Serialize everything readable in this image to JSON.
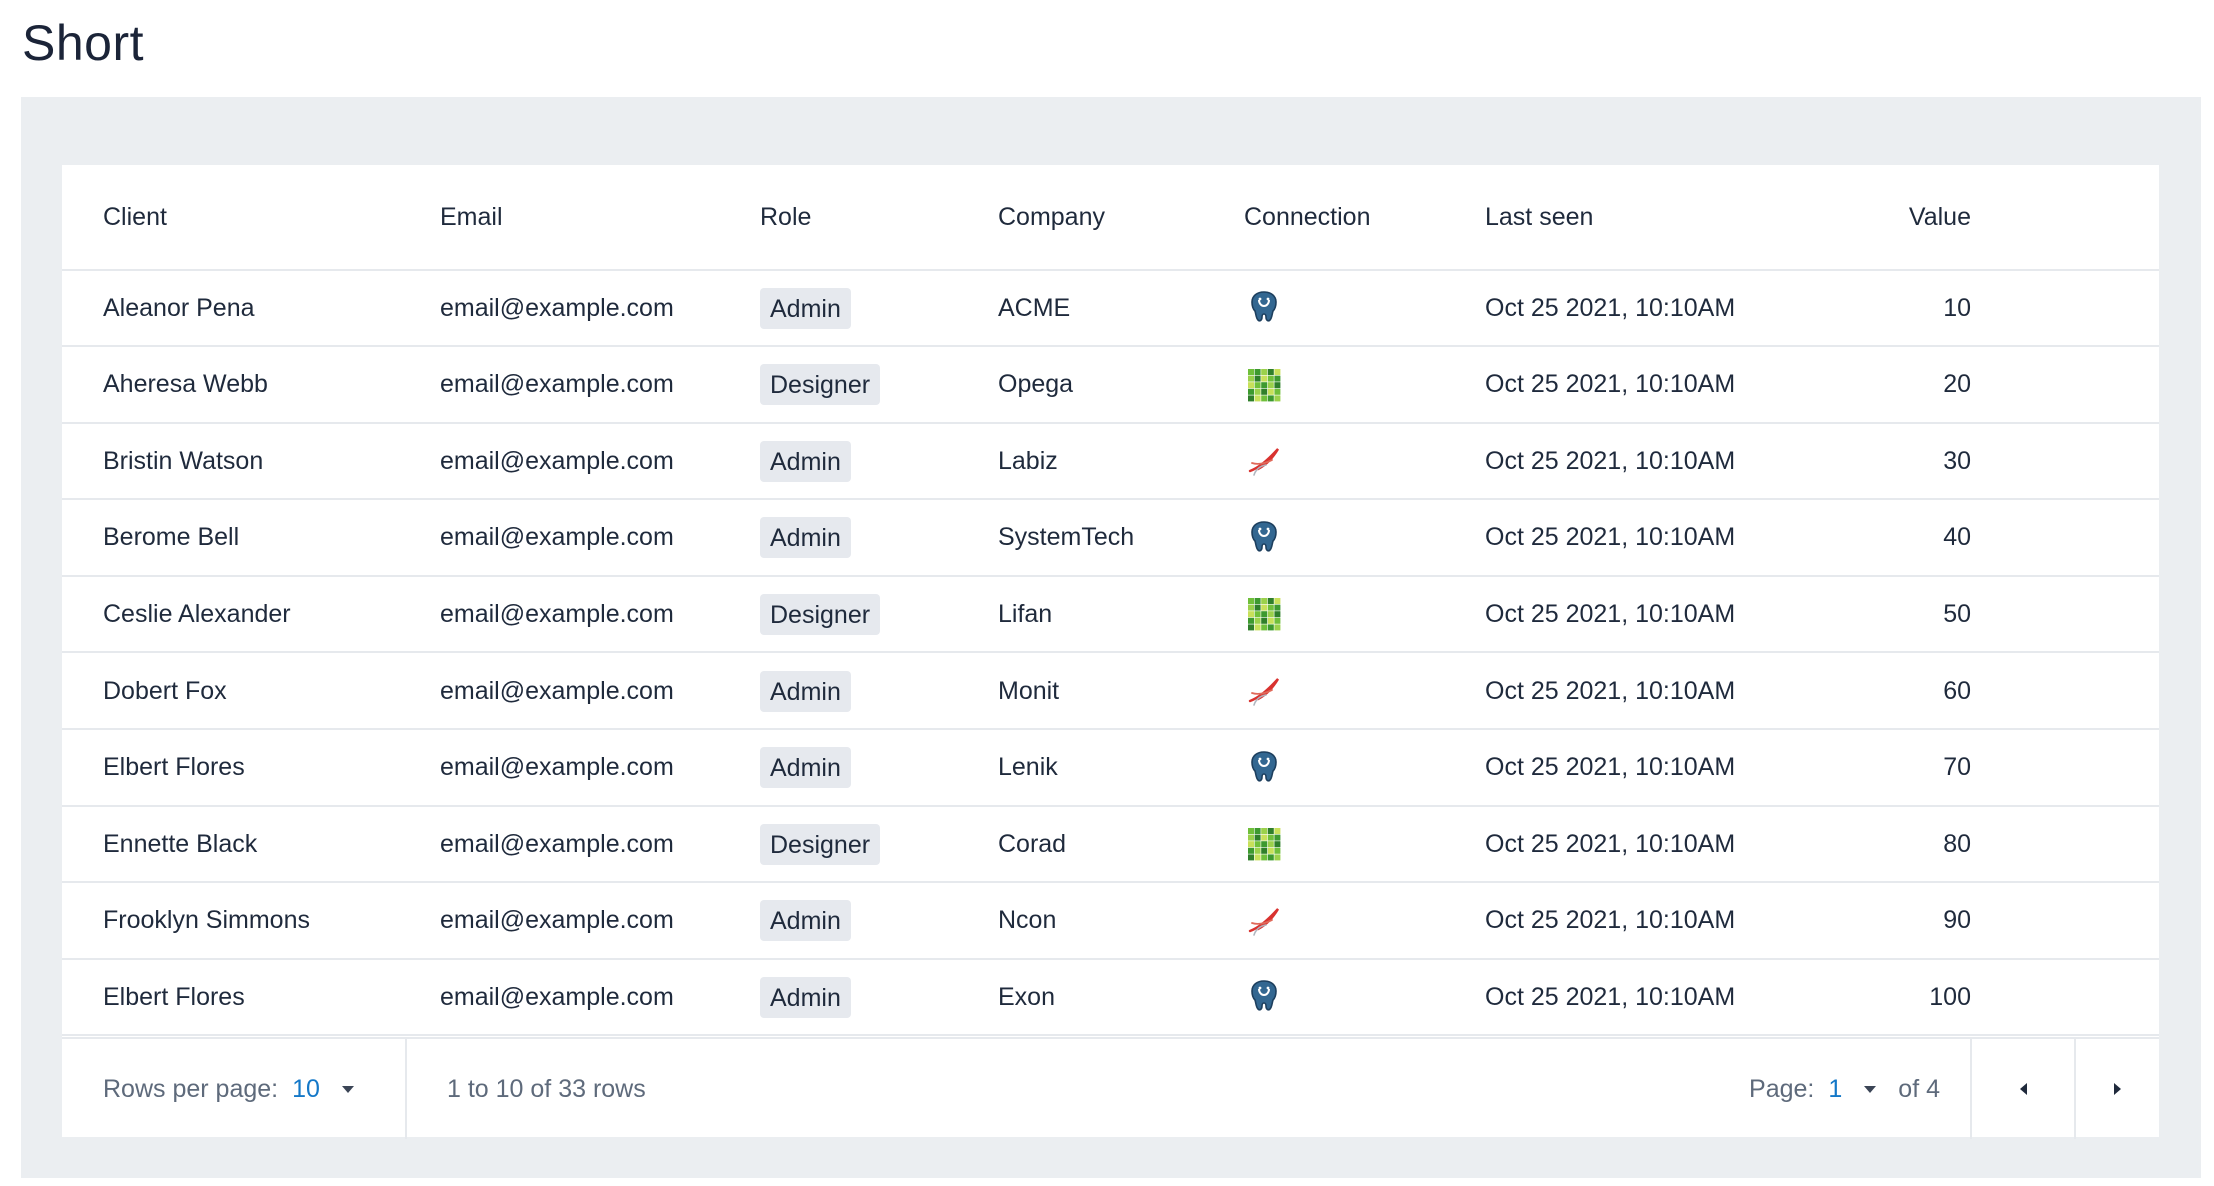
{
  "page": {
    "title": "Short"
  },
  "table": {
    "columns": {
      "client": "Client",
      "email": "Email",
      "role": "Role",
      "company": "Company",
      "connection": "Connection",
      "last_seen": "Last seen",
      "value": "Value"
    },
    "rows": [
      {
        "client": "Aleanor Pena",
        "email": "email@example.com",
        "role": "Admin",
        "company": "ACME",
        "connection": "postgresql-icon",
        "last_seen": "Oct 25  2021, 10:10AM",
        "value": "10"
      },
      {
        "client": "Aheresa Webb",
        "email": "email@example.com",
        "role": "Designer",
        "company": "Opega",
        "connection": "greenplum-icon",
        "last_seen": "Oct 25  2021, 10:10AM",
        "value": "20"
      },
      {
        "client": "Bristin Watson",
        "email": "email@example.com",
        "role": "Admin",
        "company": "Labiz",
        "connection": "sqlserver-icon",
        "last_seen": "Oct 25  2021, 10:10AM",
        "value": "30"
      },
      {
        "client": "Berome Bell",
        "email": "email@example.com",
        "role": "Admin",
        "company": "SystemTech",
        "connection": "postgresql-icon",
        "last_seen": "Oct 25  2021, 10:10AM",
        "value": "40"
      },
      {
        "client": "Ceslie Alexander",
        "email": "email@example.com",
        "role": "Designer",
        "company": "Lifan",
        "connection": "greenplum-icon",
        "last_seen": "Oct 25  2021, 10:10AM",
        "value": "50"
      },
      {
        "client": "Dobert Fox",
        "email": "email@example.com",
        "role": "Admin",
        "company": "Monit",
        "connection": "sqlserver-icon",
        "last_seen": "Oct 25  2021, 10:10AM",
        "value": "60"
      },
      {
        "client": "Elbert Flores",
        "email": "email@example.com",
        "role": "Admin",
        "company": "Lenik",
        "connection": "postgresql-icon",
        "last_seen": "Oct 25  2021, 10:10AM",
        "value": "70"
      },
      {
        "client": "Ennette Black",
        "email": "email@example.com",
        "role": "Designer",
        "company": "Corad",
        "connection": "greenplum-icon",
        "last_seen": "Oct 25  2021, 10:10AM",
        "value": "80"
      },
      {
        "client": "Frooklyn Simmons",
        "email": "email@example.com",
        "role": "Admin",
        "company": "Ncon",
        "connection": "sqlserver-icon",
        "last_seen": "Oct 25  2021, 10:10AM",
        "value": "90"
      },
      {
        "client": "Elbert Flores",
        "email": "email@example.com",
        "role": "Admin",
        "company": "Exon",
        "connection": "postgresql-icon",
        "last_seen": "Oct 25  2021, 10:10AM",
        "value": "100"
      }
    ]
  },
  "pagination": {
    "rows_per_page_label": "Rows per page:",
    "rows_per_page_value": "10",
    "range_text": "1 to 10 of 33 rows",
    "page_label": "Page:",
    "page_value": "1",
    "page_total": "of 4",
    "prev_icon": "caret-left-icon",
    "next_icon": "caret-right-icon"
  },
  "colors": {
    "accent": "#1478c8",
    "panel_bg": "#ebeef1",
    "badge_bg": "#e6e9ee",
    "text": "#1f2a3c"
  }
}
